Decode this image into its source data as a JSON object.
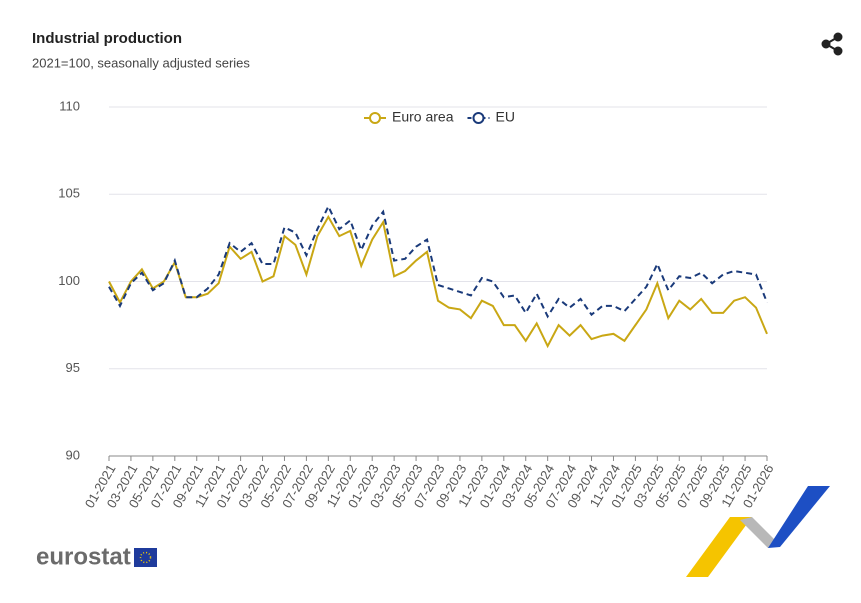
{
  "chart_data": {
    "type": "line",
    "title": "Industrial production",
    "subtitle": "2021=100, seasonally adjusted series",
    "categories": [
      "01-2021",
      null,
      "03-2021",
      null,
      "05-2021",
      null,
      "07-2021",
      null,
      "09-2021",
      null,
      "11-2021",
      null,
      "01-2022",
      null,
      "03-2022",
      null,
      "05-2022",
      null,
      "07-2022",
      null,
      "09-2022",
      null,
      "11-2022",
      null,
      "01-2023",
      null,
      "03-2023",
      null,
      "05-2023",
      null,
      "07-2023",
      null,
      "09-2023",
      null,
      "11-2023",
      null,
      "01-2024",
      null,
      "03-2024",
      null,
      "05-2024",
      null,
      "07-2024",
      null,
      "09-2024",
      null,
      "11-2024",
      null,
      "01-2025",
      null,
      "03-2025",
      null,
      "05-2025",
      null,
      "07-2025",
      null,
      "09-2025",
      null,
      "11-2025",
      null,
      "01-2026"
    ],
    "series": [
      {
        "name": "Euro area",
        "color": "#c9a714",
        "dashed": false,
        "values": [
          100.0,
          98.8,
          100.0,
          100.7,
          99.6,
          100.0,
          101.1,
          99.1,
          99.1,
          99.3,
          99.9,
          102.0,
          101.3,
          101.7,
          100.0,
          100.3,
          102.6,
          102.1,
          100.4,
          102.6,
          103.7,
          102.6,
          102.9,
          100.9,
          102.4,
          103.4,
          100.3,
          100.6,
          101.2,
          101.7,
          98.9,
          98.5,
          98.4,
          97.9,
          98.9,
          98.6,
          97.5,
          97.5,
          96.6,
          97.6,
          96.3,
          97.5,
          96.9,
          97.5,
          96.7,
          96.9,
          97.0,
          96.6,
          97.5,
          98.4,
          99.9,
          97.9,
          98.9,
          98.4,
          99.0,
          98.2,
          98.2,
          98.9,
          99.1,
          98.5,
          97.0
        ]
      },
      {
        "name": "EU",
        "color": "#1a3a7a",
        "dashed": true,
        "values": [
          99.7,
          98.6,
          99.9,
          100.5,
          99.5,
          99.9,
          101.2,
          99.1,
          99.1,
          99.6,
          100.4,
          102.2,
          101.7,
          102.2,
          101.0,
          101.0,
          103.1,
          102.8,
          101.5,
          103.0,
          104.3,
          103.0,
          103.5,
          101.8,
          103.2,
          104.0,
          101.2,
          101.3,
          102.0,
          102.4,
          99.8,
          99.6,
          99.4,
          99.2,
          100.2,
          100.0,
          99.1,
          99.2,
          98.2,
          99.3,
          98.0,
          99.0,
          98.5,
          99.0,
          98.1,
          98.6,
          98.6,
          98.3,
          99.0,
          99.7,
          101.0,
          99.5,
          100.3,
          100.2,
          100.5,
          99.9,
          100.4,
          100.6,
          100.5,
          100.4,
          98.8
        ]
      }
    ],
    "ylim": [
      90,
      110
    ],
    "yticks": [
      90,
      95,
      100,
      105,
      110
    ],
    "grid": true,
    "legend": "top"
  },
  "logo": "eurostat"
}
